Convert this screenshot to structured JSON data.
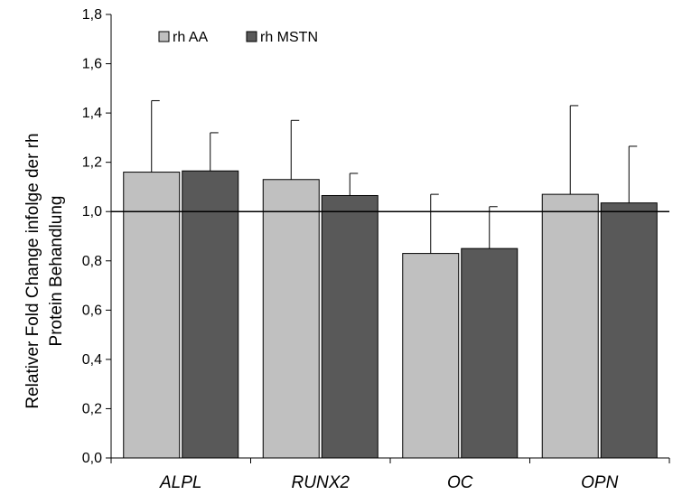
{
  "chart_data": {
    "type": "bar",
    "categories": [
      "ALPL",
      "RUNX2",
      "OC",
      "OPN"
    ],
    "series": [
      {
        "name": "rh AA",
        "color": "#c0c0c0",
        "values": [
          1.16,
          1.13,
          0.83,
          1.07
        ],
        "error": [
          0.29,
          0.24,
          0.24,
          0.36
        ]
      },
      {
        "name": "rh MSTN",
        "color": "#595959",
        "values": [
          1.165,
          1.065,
          0.85,
          1.035
        ],
        "error": [
          0.155,
          0.09,
          0.17,
          0.23
        ]
      }
    ],
    "ylabel_lines": [
      "Relativer Fold Change infolge der rh",
      "Protein Behandlung"
    ],
    "ylim": [
      0,
      1.8
    ],
    "yticks": [
      "0,0",
      "0,2",
      "0,4",
      "0,6",
      "0,8",
      "1,0",
      "1,2",
      "1,4",
      "1,6",
      "1,8"
    ],
    "reference_line": 1.0,
    "legend_position": "top-left",
    "grid": false
  }
}
